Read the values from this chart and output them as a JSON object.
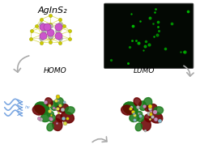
{
  "title": "AgInS₂",
  "homo_label": "HOMO",
  "lumo_label": "LUMO",
  "hv_label": "hν",
  "bg_color": "#ffffff",
  "arrow_color": "#aaaaaa",
  "title_fontsize": 8,
  "label_fontsize": 6.5,
  "green_lobe": "#1a7a1a",
  "darkred_lobe": "#6b0000",
  "s_color": "#cccc00",
  "ag_color": "#b8b8b8",
  "in_color": "#cc55cc",
  "yellow_atom": "#ddcc00",
  "pink_atom": "#cc88bb",
  "gray_atom": "#888888",
  "cyan_atom": "#88bbcc",
  "microscopy_bg": "#030803",
  "microscopy_dot": "#00bb00",
  "hv_color": "#6699dd"
}
